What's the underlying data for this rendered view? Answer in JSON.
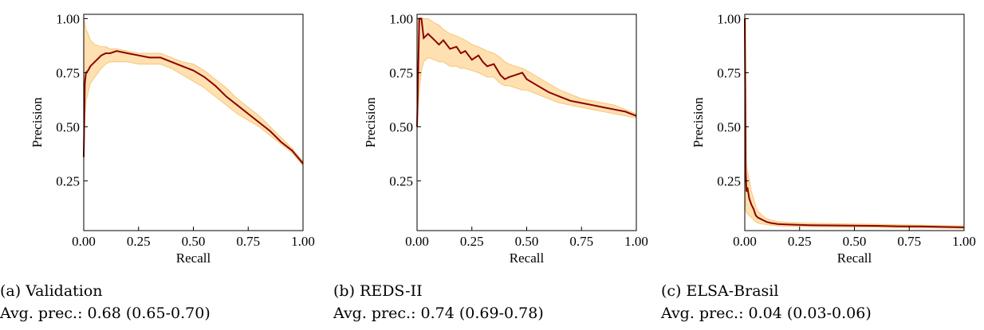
{
  "colors": {
    "line": "#8b0000",
    "band": "#ffe0b0",
    "band_edge": "#f5c77a",
    "axis": "#000000"
  },
  "chart_data": [
    {
      "type": "line",
      "caption": "(a) Validation",
      "avg_prec": "Avg. prec.: 0.68 (0.65-0.70)",
      "xlabel": "Recall",
      "ylabel": "Precision",
      "xlim": [
        0,
        1
      ],
      "ylim": [
        0.02,
        1.02
      ],
      "xticks": [
        "0.00",
        "0.25",
        "0.50",
        "0.75",
        "1.00"
      ],
      "yticks": [
        "0.25",
        "0.50",
        "0.75",
        "1.00"
      ],
      "series": [
        {
          "x": [
            0,
            0.005,
            0.01,
            0.02,
            0.03,
            0.05,
            0.08,
            0.1,
            0.12,
            0.15,
            0.2,
            0.25,
            0.3,
            0.35,
            0.4,
            0.45,
            0.5,
            0.55,
            0.6,
            0.65,
            0.7,
            0.75,
            0.8,
            0.85,
            0.9,
            0.95,
            1.0
          ],
          "y": [
            0.36,
            0.7,
            0.75,
            0.76,
            0.78,
            0.8,
            0.83,
            0.84,
            0.84,
            0.85,
            0.84,
            0.83,
            0.82,
            0.82,
            0.8,
            0.78,
            0.76,
            0.73,
            0.69,
            0.64,
            0.6,
            0.56,
            0.52,
            0.48,
            0.43,
            0.39,
            0.33
          ],
          "lower": [
            0.34,
            0.55,
            0.62,
            0.66,
            0.7,
            0.73,
            0.77,
            0.79,
            0.8,
            0.8,
            0.8,
            0.79,
            0.79,
            0.79,
            0.77,
            0.74,
            0.71,
            0.68,
            0.64,
            0.6,
            0.56,
            0.53,
            0.5,
            0.46,
            0.42,
            0.38,
            0.32
          ],
          "upper": [
            1.0,
            0.98,
            0.95,
            0.93,
            0.9,
            0.88,
            0.87,
            0.87,
            0.86,
            0.86,
            0.85,
            0.84,
            0.84,
            0.84,
            0.82,
            0.8,
            0.79,
            0.76,
            0.72,
            0.68,
            0.63,
            0.59,
            0.55,
            0.5,
            0.45,
            0.4,
            0.34
          ]
        }
      ]
    },
    {
      "type": "line",
      "caption": "(b) REDS-II",
      "avg_prec": "Avg. prec.: 0.74 (0.69-0.78)",
      "xlabel": "Recall",
      "ylabel": "Precision",
      "xlim": [
        0,
        1
      ],
      "ylim": [
        0.02,
        1.02
      ],
      "xticks": [
        "0.00",
        "0.25",
        "0.50",
        "0.75",
        "1.00"
      ],
      "yticks": [
        "0.25",
        "0.50",
        "0.75",
        "1.00"
      ],
      "series": [
        {
          "x": [
            0,
            0.01,
            0.02,
            0.03,
            0.05,
            0.08,
            0.1,
            0.12,
            0.15,
            0.18,
            0.2,
            0.22,
            0.25,
            0.28,
            0.3,
            0.32,
            0.35,
            0.38,
            0.4,
            0.42,
            0.45,
            0.48,
            0.5,
            0.55,
            0.6,
            0.65,
            0.7,
            0.75,
            0.8,
            0.85,
            0.9,
            0.95,
            1.0
          ],
          "y": [
            0.5,
            1.0,
            1.0,
            0.91,
            0.93,
            0.9,
            0.88,
            0.9,
            0.86,
            0.87,
            0.84,
            0.85,
            0.81,
            0.83,
            0.8,
            0.78,
            0.79,
            0.74,
            0.72,
            0.73,
            0.74,
            0.75,
            0.72,
            0.69,
            0.66,
            0.64,
            0.62,
            0.61,
            0.6,
            0.59,
            0.58,
            0.57,
            0.55
          ],
          "lower": [
            0.5,
            0.66,
            0.76,
            0.8,
            0.82,
            0.81,
            0.8,
            0.8,
            0.78,
            0.78,
            0.77,
            0.77,
            0.76,
            0.75,
            0.74,
            0.73,
            0.73,
            0.7,
            0.69,
            0.69,
            0.68,
            0.67,
            0.67,
            0.65,
            0.63,
            0.61,
            0.6,
            0.59,
            0.58,
            0.57,
            0.56,
            0.55,
            0.54
          ],
          "upper": [
            1.0,
            1.0,
            1.0,
            1.0,
            1.0,
            0.98,
            0.97,
            0.95,
            0.93,
            0.92,
            0.91,
            0.9,
            0.88,
            0.87,
            0.86,
            0.85,
            0.84,
            0.82,
            0.8,
            0.79,
            0.78,
            0.77,
            0.76,
            0.73,
            0.7,
            0.67,
            0.65,
            0.63,
            0.62,
            0.61,
            0.6,
            0.58,
            0.56
          ]
        }
      ]
    },
    {
      "type": "line",
      "caption": "(c) ELSA-Brasil",
      "avg_prec": "Avg. prec.: 0.04 (0.03-0.06)",
      "xlabel": "Recall",
      "ylabel": "Precision",
      "xlim": [
        0,
        1
      ],
      "ylim": [
        0.02,
        1.02
      ],
      "xticks": [
        "0.00",
        "0.25",
        "0.50",
        "0.75",
        "1.00"
      ],
      "yticks": [
        "0.25",
        "0.50",
        "0.75",
        "1.00"
      ],
      "series": [
        {
          "x": [
            0,
            0.004,
            0.008,
            0.012,
            0.02,
            0.03,
            0.04,
            0.05,
            0.06,
            0.08,
            0.1,
            0.12,
            0.15,
            0.2,
            0.3,
            0.4,
            0.5,
            0.6,
            0.7,
            0.8,
            0.9,
            1.0
          ],
          "y": [
            1.0,
            0.3,
            0.2,
            0.22,
            0.17,
            0.14,
            0.12,
            0.09,
            0.08,
            0.07,
            0.06,
            0.055,
            0.05,
            0.048,
            0.045,
            0.044,
            0.043,
            0.042,
            0.04,
            0.039,
            0.037,
            0.035
          ],
          "lower": [
            0.5,
            0.12,
            0.1,
            0.1,
            0.09,
            0.08,
            0.07,
            0.06,
            0.055,
            0.05,
            0.048,
            0.045,
            0.042,
            0.04,
            0.038,
            0.037,
            0.036,
            0.035,
            0.034,
            0.033,
            0.032,
            0.03
          ],
          "upper": [
            1.0,
            1.0,
            0.32,
            0.3,
            0.26,
            0.2,
            0.17,
            0.13,
            0.11,
            0.09,
            0.075,
            0.068,
            0.062,
            0.058,
            0.054,
            0.052,
            0.05,
            0.049,
            0.047,
            0.045,
            0.043,
            0.041
          ]
        }
      ]
    }
  ]
}
